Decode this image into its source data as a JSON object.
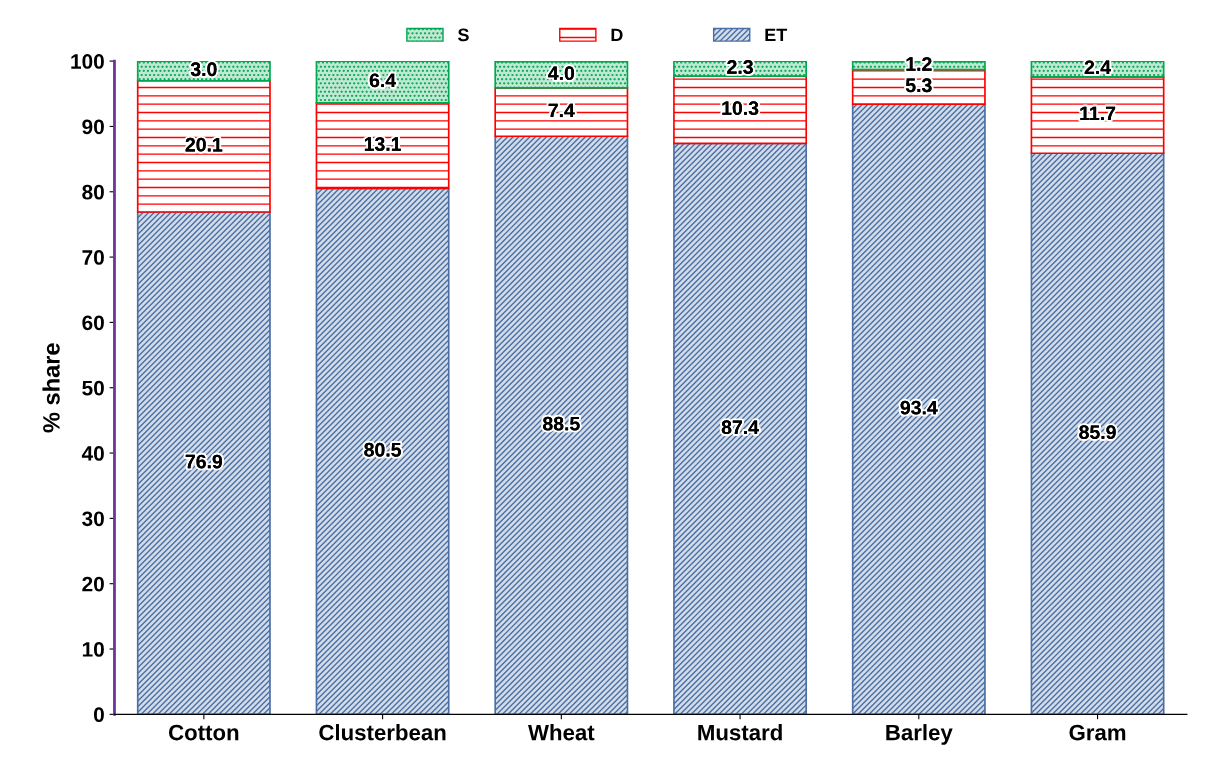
{
  "chart_data": {
    "type": "bar",
    "stacked": true,
    "ylabel": "% share",
    "categories": [
      "Cotton",
      "Clusterbean",
      "Wheat",
      "Mustard",
      "Barley",
      "Gram"
    ],
    "series": [
      {
        "name": "ET",
        "color": "#4a6fa5",
        "values": [
          76.9,
          80.5,
          88.5,
          87.4,
          93.4,
          85.9
        ]
      },
      {
        "name": "D",
        "color": "#ff0000",
        "values": [
          20.1,
          13.1,
          7.4,
          10.3,
          5.3,
          11.7
        ]
      },
      {
        "name": "S",
        "color": "#00a651",
        "values": [
          3.0,
          6.4,
          4.0,
          2.3,
          1.2,
          2.4
        ],
        "value_labels": [
          "3.0",
          "6.4",
          "4.0",
          "2.3",
          "1.2",
          "2.4"
        ]
      }
    ],
    "ylim": [
      0,
      100
    ],
    "yticks": [
      0,
      10,
      20,
      30,
      40,
      50,
      60,
      70,
      80,
      90,
      100
    ],
    "data_labels": true,
    "legend": "top",
    "grid": false
  }
}
